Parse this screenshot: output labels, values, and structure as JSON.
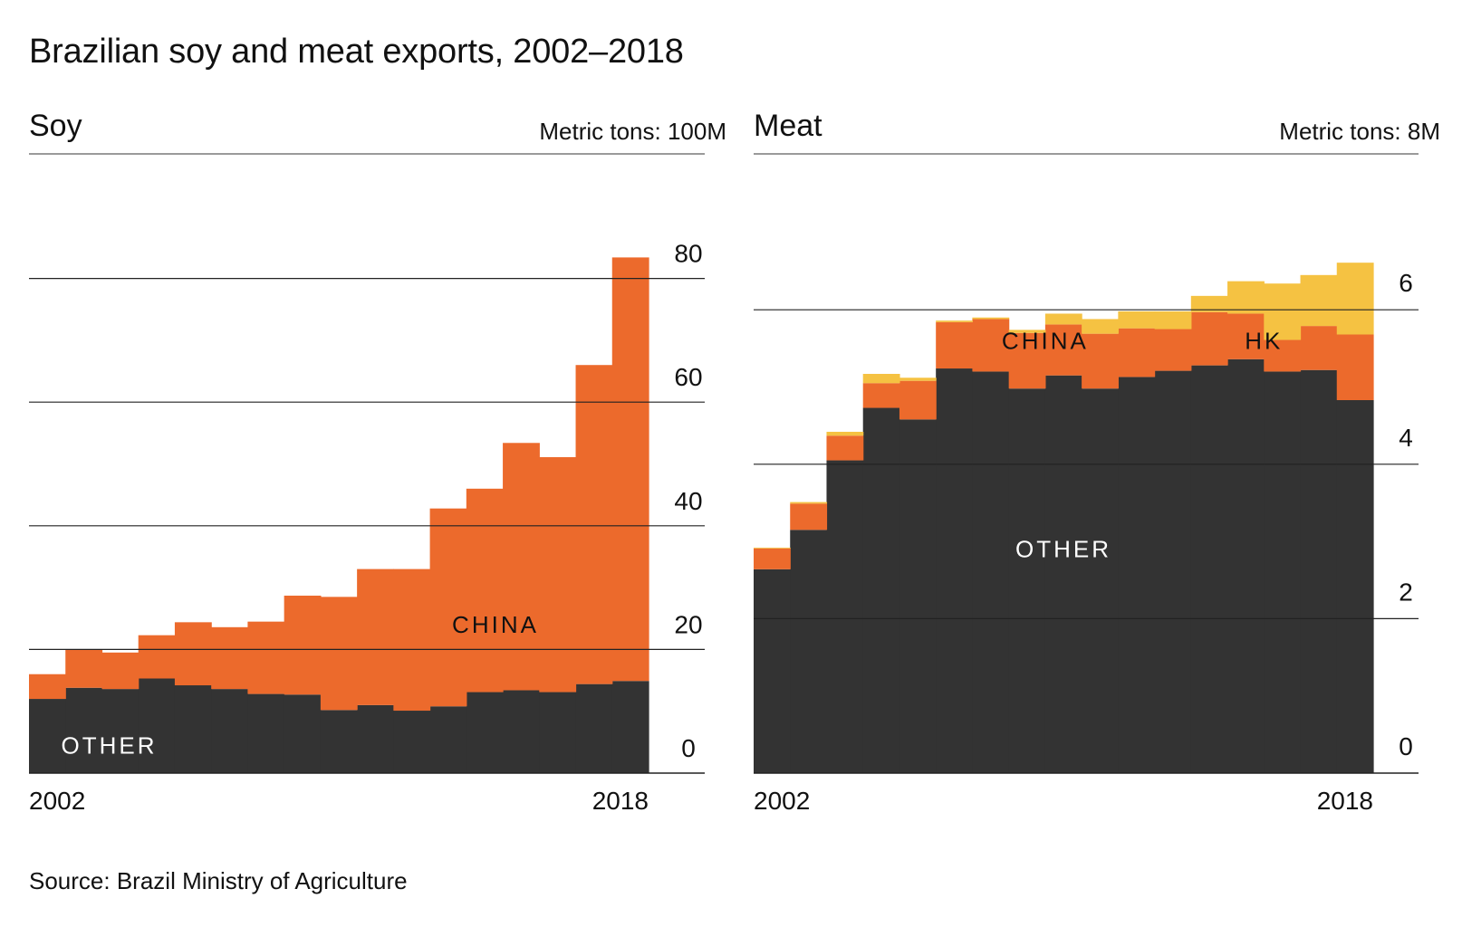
{
  "title": "Brazilian soy and meat exports, 2002–2018",
  "source": "Source: Brazil Ministry of Agriculture",
  "colors": {
    "other": "#333333",
    "china": "#ec6a2c",
    "hk": "#f5c242",
    "gridline": "#222222",
    "text": "#111111"
  },
  "chart_data": [
    {
      "type": "area",
      "stacked": true,
      "step": true,
      "panel_title": "Soy",
      "unit_label": "Metric tons: 100M",
      "x": [
        2002,
        2003,
        2004,
        2005,
        2006,
        2007,
        2008,
        2009,
        2010,
        2011,
        2012,
        2013,
        2014,
        2015,
        2016,
        2017,
        2018
      ],
      "x_tick_labels": [
        "2002",
        "2018"
      ],
      "ylim": [
        0,
        85
      ],
      "y_ticks": [
        0,
        20,
        40,
        60,
        80
      ],
      "grid": true,
      "series": [
        {
          "name": "OTHER",
          "color_key": "other",
          "label_color": "#ffffff",
          "values": [
            12.0,
            13.8,
            13.6,
            15.3,
            14.2,
            13.6,
            12.8,
            12.7,
            10.2,
            11.0,
            10.1,
            10.8,
            13.1,
            13.4,
            13.1,
            14.4,
            14.9
          ]
        },
        {
          "name": "CHINA",
          "color_key": "china",
          "label_color": "#111111",
          "values": [
            4.0,
            6.2,
            5.9,
            7.0,
            10.2,
            10.0,
            11.7,
            16.0,
            18.3,
            22.0,
            22.9,
            32.0,
            32.9,
            40.0,
            38.0,
            51.6,
            68.5
          ]
        }
      ]
    },
    {
      "type": "area",
      "stacked": true,
      "step": true,
      "panel_title": "Meat",
      "unit_label": "Metric tons: 8M",
      "x": [
        2002,
        2003,
        2004,
        2005,
        2006,
        2007,
        2008,
        2009,
        2010,
        2011,
        2012,
        2013,
        2014,
        2015,
        2016,
        2017,
        2018
      ],
      "x_tick_labels": [
        "2002",
        "2018"
      ],
      "ylim": [
        0,
        7
      ],
      "y_ticks": [
        0,
        2,
        4,
        6
      ],
      "grid": true,
      "series": [
        {
          "name": "OTHER",
          "color_key": "other",
          "label_color": "#ffffff",
          "values": [
            2.64,
            3.15,
            4.05,
            4.73,
            4.58,
            5.24,
            5.2,
            4.98,
            5.15,
            4.98,
            5.13,
            5.21,
            5.28,
            5.36,
            5.2,
            5.22,
            4.83
          ]
        },
        {
          "name": "CHINA",
          "color_key": "china",
          "label_color": "#111111",
          "values": [
            0.27,
            0.34,
            0.32,
            0.32,
            0.5,
            0.6,
            0.68,
            0.72,
            0.66,
            0.71,
            0.63,
            0.54,
            0.69,
            0.59,
            0.41,
            0.57,
            0.85
          ]
        },
        {
          "name": "HK",
          "color_key": "hk",
          "label_color": "#111111",
          "values": [
            0.01,
            0.02,
            0.05,
            0.12,
            0.04,
            0.02,
            0.02,
            0.04,
            0.14,
            0.19,
            0.22,
            0.23,
            0.21,
            0.42,
            0.73,
            0.66,
            0.93
          ]
        }
      ]
    }
  ]
}
